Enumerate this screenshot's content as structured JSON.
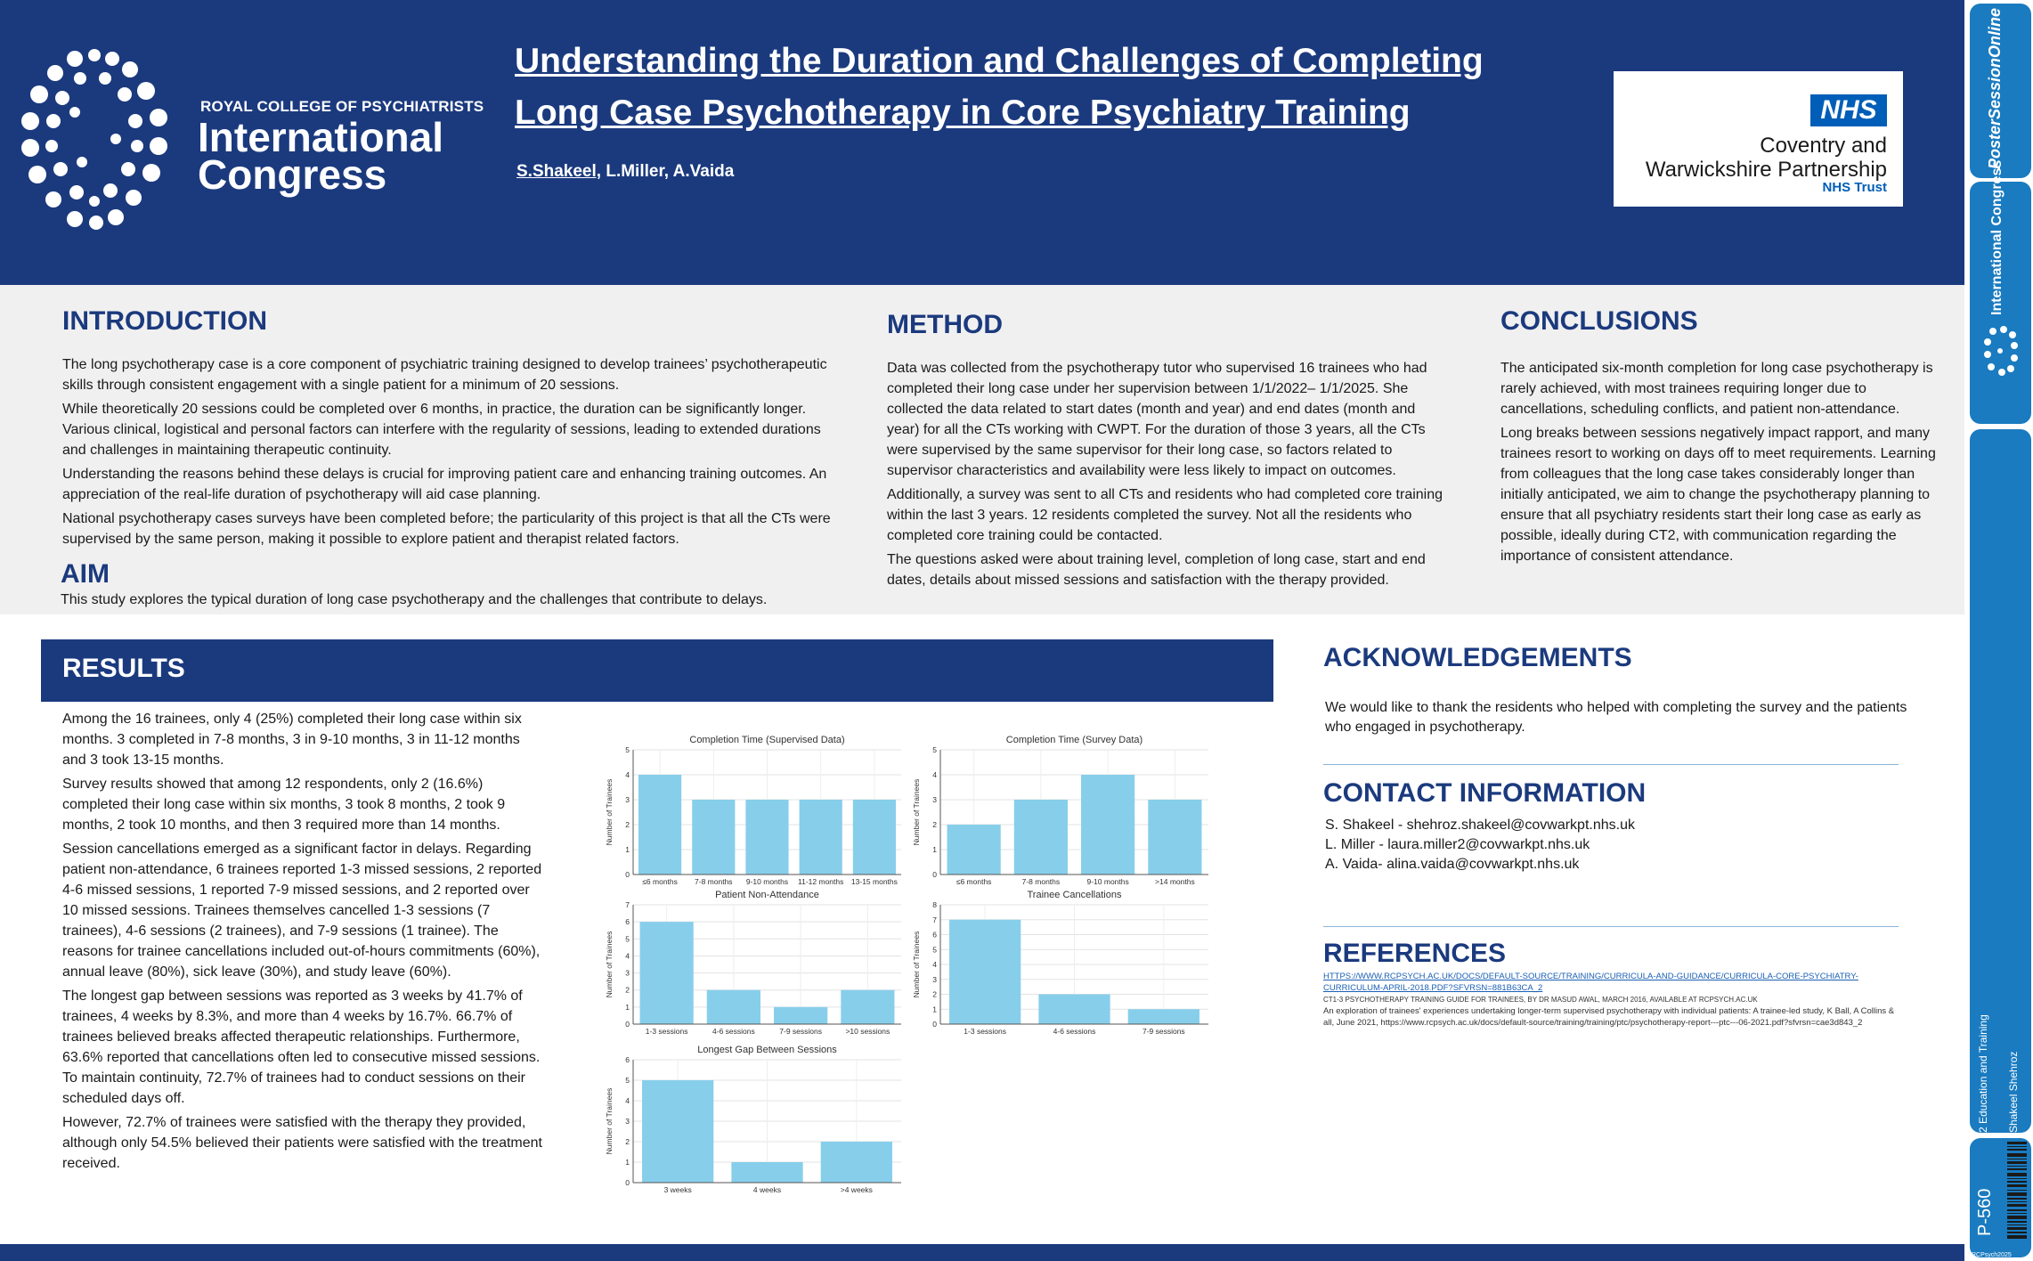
{
  "header": {
    "college": "ROYAL COLLEGE OF PSYCHIATRISTS",
    "brand_line1": "International",
    "brand_line2": "Congress",
    "title_line1": "Understanding the Duration and Challenges of Completing",
    "title_line2": "Long Case Psychotherapy in Core Psychiatry Training",
    "author_first": "S.Shakeel,",
    "authors_rest": " L.Miller, A.Vaida",
    "nhs_badge": "NHS",
    "nhs_org_line1": "Coventry and",
    "nhs_org_line2": "Warwickshire Partnership",
    "nhs_org_line3": "NHS Trust"
  },
  "sidebar": {
    "poster_session": "PosterSessionOnline",
    "intl_congress": "International Congress",
    "category": "2 Education and Training",
    "presenter": "Shakeel Shehroz",
    "poster_id": "P-560",
    "event": "RCPsych2025"
  },
  "introduction": {
    "heading": "INTRODUCTION",
    "paragraphs": [
      "The long psychotherapy case is a core component of psychiatric training designed to develop trainees’ psychotherapeutic skills through consistent engagement with a single patient for a minimum of 20 sessions.",
      "While theoretically 20 sessions could be completed over 6 months, in practice, the duration can be significantly longer. Various clinical, logistical and personal factors can interfere with the regularity of sessions, leading to extended durations and challenges in maintaining therapeutic continuity.",
      "Understanding the reasons behind these delays is crucial for improving patient care and enhancing training outcomes. An appreciation of the real-life duration of psychotherapy will aid case planning.",
      "National psychotherapy cases surveys have been completed before; the particularity of this project is that all the CTs were supervised by the same person, making it possible to explore patient and therapist related factors."
    ]
  },
  "aim": {
    "heading": "AIM",
    "text": "This study explores the typical duration of long case psychotherapy and the challenges that contribute to delays."
  },
  "method": {
    "heading": "METHOD",
    "paragraphs": [
      "Data was collected from the psychotherapy tutor who supervised 16 trainees who had completed their long case under her supervision between 1/1/2022– 1/1/2025. She collected the data related to start dates (month and year) and end dates (month and year) for all the CTs working with CWPT. For the duration of those 3 years, all the CTs were supervised by the same supervisor for their long case, so factors related to supervisor characteristics and availability were less likely to impact on outcomes.",
      "Additionally, a survey was sent to all CTs and residents who had completed core training within the last 3 years. 12 residents completed the survey. Not all the residents who completed core training could be contacted.",
      "The questions asked were about training level, completion of long case, start and end dates, details about missed sessions and satisfaction with the therapy provided."
    ]
  },
  "conclusions": {
    "heading": "CONCLUSIONS",
    "paragraphs": [
      "The anticipated six-month completion for long case psychotherapy is rarely achieved, with most trainees requiring longer due to cancellations, scheduling conflicts, and patient non-attendance.",
      "Long breaks between sessions negatively impact rapport, and many trainees resort to working on days off to meet requirements. Learning from colleagues that the long case takes considerably longer than initially anticipated, we aim to change the psychotherapy planning to ensure that all psychiatry residents start their long case as early as possible, ideally during CT2, with communication regarding the importance of consistent attendance."
    ]
  },
  "results": {
    "heading": "RESULTS",
    "paragraphs": [
      "Among the 16 trainees, only 4 (25%) completed their long case within six months. 3 completed in 7-8 months, 3 in 9-10 months, 3 in 11-12 months and 3 took 13-15 months.",
      "Survey results showed that among 12 respondents, only 2 (16.6%) completed their long case within six months, 3 took 8 months, 2 took 9 months, 2 took 10 months, and then 3 required more than 14 months.",
      "Session cancellations emerged as a significant factor in delays. Regarding patient non-attendance, 6 trainees reported 1-3 missed sessions, 2 reported 4-6 missed sessions, 1 reported 7-9 missed sessions, and 2 reported over 10 missed sessions. Trainees themselves cancelled 1-3 sessions (7 trainees), 4-6 sessions (2 trainees), and 7-9 sessions (1 trainee). The reasons for trainee cancellations included out-of-hours commitments (60%), annual leave (80%), sick leave (30%), and study leave (60%).",
      "The longest gap between sessions was reported as 3 weeks by 41.7% of trainees, 4 weeks by 8.3%, and more than 4 weeks by 16.7%. 66.7% of trainees believed breaks affected therapeutic relationships. Furthermore, 63.6% reported that cancellations often led to consecutive missed sessions. To maintain continuity, 72.7% of trainees had to conduct sessions on their scheduled days off.",
      "However, 72.7% of trainees were satisfied with the therapy they provided, although only 54.5% believed their patients were satisfied with the treatment received."
    ]
  },
  "chart_data": [
    {
      "type": "bar",
      "title": "Completion Time (Supervised Data)",
      "ylabel": "Number of Trainees",
      "categories": [
        "≤6 months",
        "7-8 months",
        "9-10 months",
        "11-12 months",
        "13-15 months"
      ],
      "values": [
        4,
        3,
        3,
        3,
        3
      ],
      "ylim": [
        0,
        5
      ],
      "yticks": [
        0,
        1,
        2,
        3,
        4,
        5
      ],
      "color": "#87ceeb",
      "grid": true
    },
    {
      "type": "bar",
      "title": "Completion Time (Survey Data)",
      "ylabel": "Number of Trainees",
      "categories": [
        "≤6 months",
        "7-8 months",
        "9-10 months",
        ">14 months"
      ],
      "values": [
        2,
        3,
        4,
        3
      ],
      "ylim": [
        0,
        5
      ],
      "yticks": [
        0,
        1,
        2,
        3,
        4,
        5
      ],
      "color": "#87ceeb",
      "grid": true
    },
    {
      "type": "bar",
      "title": "Patient Non-Attendance",
      "ylabel": "Number of Trainees",
      "categories": [
        "1-3 sessions",
        "4-6 sessions",
        "7-9 sessions",
        ">10 sessions"
      ],
      "values": [
        6,
        2,
        1,
        2
      ],
      "ylim": [
        0,
        7
      ],
      "yticks": [
        0,
        1,
        2,
        3,
        4,
        5,
        6,
        7
      ],
      "color": "#87ceeb",
      "grid": true
    },
    {
      "type": "bar",
      "title": "Trainee Cancellations",
      "ylabel": "Number of Trainees",
      "categories": [
        "1-3 sessions",
        "4-6 sessions",
        "7-9 sessions"
      ],
      "values": [
        7,
        2,
        1
      ],
      "ylim": [
        0,
        8
      ],
      "yticks": [
        0,
        1,
        2,
        3,
        4,
        5,
        6,
        7,
        8
      ],
      "color": "#87ceeb",
      "grid": true
    },
    {
      "type": "bar",
      "title": "Longest Gap Between Sessions",
      "ylabel": "Number of Trainees",
      "categories": [
        "3 weeks",
        "4 weeks",
        ">4 weeks"
      ],
      "values": [
        5,
        1,
        2
      ],
      "ylim": [
        0,
        6
      ],
      "yticks": [
        0,
        1,
        2,
        3,
        4,
        5,
        6
      ],
      "color": "#87ceeb",
      "grid": true
    }
  ],
  "acknowledgements": {
    "heading": "ACKNOWLEDGEMENTS",
    "text": "We would like to thank the residents who helped with completing the survey and the patients who engaged in psychotherapy."
  },
  "contact": {
    "heading": "CONTACT INFORMATION",
    "lines": [
      "S. Shakeel - shehroz.shakeel@covwarkpt.nhs.uk",
      "L. Miller - laura.miller2@covwarkpt.nhs.uk",
      "A. Vaida- alina.vaida@covwarkpt.nhs.uk"
    ]
  },
  "references": {
    "heading": "REFERENCES",
    "items": [
      "HTTPS://WWW.RCPSYCH.AC.UK/DOCS/DEFAULT-SOURCE/TRAINING/CURRICULA-AND-GUIDANCE/CURRICULA-CORE-PSYCHIATRY-CURRICULUM-APRIL-2018.PDF?SFVRSN=881B63CA_2",
      "CT1-3 PSYCHOTHERAPY TRAINING GUIDE FOR TRAINEES, BY DR MASUD AWAL, MARCH 2016, AVAILABLE AT RCPSYCH.AC.UK",
      "An exploration of trainees' experiences undertaking longer-term supervised psychotherapy with individual patients: A trainee-led study, K Ball, A Collins & all, June 2021, https://www.rcpsych.ac.uk/docs/default-source/training/training/ptc/psychotherapy-report---ptc---06-2021.pdf?sfvrsn=cae3d843_2"
    ]
  },
  "colors": {
    "navy": "#1b3a7e",
    "bar": "#87ceeb",
    "sidebar": "#1a7bc0",
    "nhs_blue": "#005eb8"
  }
}
